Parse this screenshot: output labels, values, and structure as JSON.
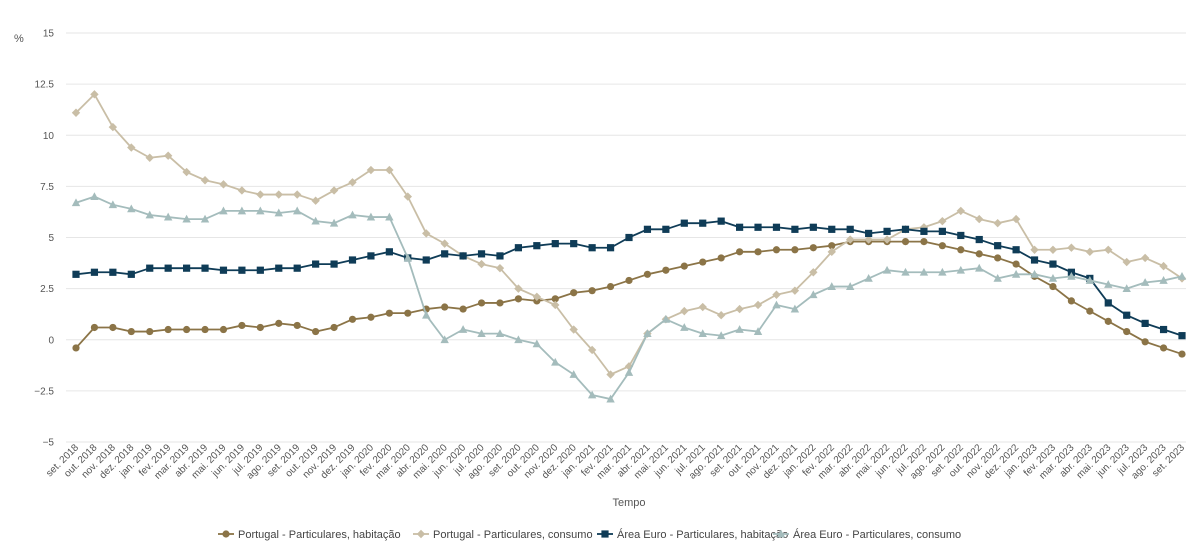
{
  "chart_data": {
    "type": "line",
    "title": "",
    "ylabel": "%",
    "xlabel": "Tempo",
    "ylim": [
      -5,
      15
    ],
    "yticks": [
      15,
      12.5,
      10,
      7.5,
      5,
      2.5,
      0,
      -2.5,
      -5
    ],
    "ytick_labels": [
      "15",
      "12.5",
      "10",
      "7.5",
      "5",
      "2.5",
      "0",
      "−2.5",
      "−5"
    ],
    "categories": [
      "set. 2018",
      "out. 2018",
      "nov. 2018",
      "dez. 2018",
      "jan. 2019",
      "fev. 2019",
      "mar. 2019",
      "abr. 2019",
      "mai. 2019",
      "jun. 2019",
      "jul. 2019",
      "ago. 2019",
      "set. 2019",
      "out. 2019",
      "nov. 2019",
      "dez. 2019",
      "jan. 2020",
      "fev. 2020",
      "mar. 2020",
      "abr. 2020",
      "mai. 2020",
      "jun. 2020",
      "jul. 2020",
      "ago. 2020",
      "set. 2020",
      "out. 2020",
      "nov. 2020",
      "dez. 2020",
      "jan. 2021",
      "fev. 2021",
      "mar. 2021",
      "abr. 2021",
      "mai. 2021",
      "jun. 2021",
      "jul. 2021",
      "ago. 2021",
      "set. 2021",
      "out. 2021",
      "nov. 2021",
      "dez. 2021",
      "jan. 2022",
      "fev. 2022",
      "mar. 2022",
      "abr. 2022",
      "mai. 2022",
      "jun. 2022",
      "jul. 2022",
      "ago. 2022",
      "set. 2022",
      "out. 2022",
      "nov. 2022",
      "dez. 2022",
      "jan. 2023",
      "fev. 2023",
      "mar. 2023",
      "abr. 2023",
      "mai. 2023",
      "jun. 2023",
      "jul. 2023",
      "ago. 2023",
      "set. 2023"
    ],
    "series": [
      {
        "name": "Portugal - Particulares, habitação",
        "color": "#8b7447",
        "marker": "circle",
        "values": [
          -0.4,
          0.6,
          0.6,
          0.4,
          0.4,
          0.5,
          0.5,
          0.5,
          0.5,
          0.7,
          0.6,
          0.8,
          0.7,
          0.4,
          0.6,
          1.0,
          1.1,
          1.3,
          1.3,
          1.5,
          1.6,
          1.5,
          1.8,
          1.8,
          2.0,
          1.9,
          2.0,
          2.3,
          2.4,
          2.6,
          2.9,
          3.2,
          3.4,
          3.6,
          3.8,
          4.0,
          4.3,
          4.3,
          4.4,
          4.4,
          4.5,
          4.6,
          4.8,
          4.8,
          4.8,
          4.8,
          4.8,
          4.6,
          4.4,
          4.2,
          4.0,
          3.7,
          3.1,
          2.6,
          1.9,
          1.4,
          0.9,
          0.4,
          -0.1,
          -0.4,
          -0.7
        ]
      },
      {
        "name": "Portugal - Particulares, consumo",
        "color": "#c9bea6",
        "marker": "diamond",
        "values": [
          11.1,
          12.0,
          10.4,
          9.4,
          8.9,
          9.0,
          8.2,
          7.8,
          7.6,
          7.3,
          7.1,
          7.1,
          7.1,
          6.8,
          7.3,
          7.7,
          8.3,
          8.3,
          7.0,
          5.2,
          4.7,
          4.1,
          3.7,
          3.5,
          2.5,
          2.1,
          1.7,
          0.5,
          -0.5,
          -1.7,
          -1.3,
          0.3,
          1.0,
          1.4,
          1.6,
          1.2,
          1.5,
          1.7,
          2.2,
          2.4,
          3.3,
          4.3,
          4.9,
          4.9,
          4.9,
          5.4,
          5.5,
          5.8,
          6.3,
          5.9,
          5.7,
          5.9,
          4.4,
          4.4,
          4.5,
          4.3,
          4.4,
          3.8,
          4.0,
          3.6,
          3.0
        ]
      },
      {
        "name": "Área Euro - Particulares, habitação",
        "color": "#0f3c57",
        "marker": "square",
        "values": [
          3.2,
          3.3,
          3.3,
          3.2,
          3.5,
          3.5,
          3.5,
          3.5,
          3.4,
          3.4,
          3.4,
          3.5,
          3.5,
          3.7,
          3.7,
          3.9,
          4.1,
          4.3,
          4.0,
          3.9,
          4.2,
          4.1,
          4.2,
          4.1,
          4.5,
          4.6,
          4.7,
          4.7,
          4.5,
          4.5,
          5.0,
          5.4,
          5.4,
          5.7,
          5.7,
          5.8,
          5.5,
          5.5,
          5.5,
          5.4,
          5.5,
          5.4,
          5.4,
          5.2,
          5.3,
          5.4,
          5.3,
          5.3,
          5.1,
          4.9,
          4.6,
          4.4,
          3.9,
          3.7,
          3.3,
          3.0,
          1.8,
          1.2,
          0.8,
          0.5,
          0.2
        ]
      },
      {
        "name": "Área Euro - Particulares, consumo",
        "color": "#a4bcbc",
        "marker": "triangle",
        "values": [
          6.7,
          7.0,
          6.6,
          6.4,
          6.1,
          6.0,
          5.9,
          5.9,
          6.3,
          6.3,
          6.3,
          6.2,
          6.3,
          5.8,
          5.7,
          6.1,
          6.0,
          6.0,
          4.0,
          1.2,
          0.0,
          0.5,
          0.3,
          0.3,
          0.0,
          -0.2,
          -1.1,
          -1.7,
          -2.7,
          -2.9,
          -1.6,
          0.3,
          1.0,
          0.6,
          0.3,
          0.2,
          0.5,
          0.4,
          1.7,
          1.5,
          2.2,
          2.6,
          2.6,
          3.0,
          3.4,
          3.3,
          3.3,
          3.3,
          3.4,
          3.5,
          3.0,
          3.2,
          3.2,
          3.0,
          3.1,
          2.9,
          2.7,
          2.5,
          2.8,
          2.9,
          3.1
        ]
      }
    ],
    "legend_position": "bottom-center"
  }
}
